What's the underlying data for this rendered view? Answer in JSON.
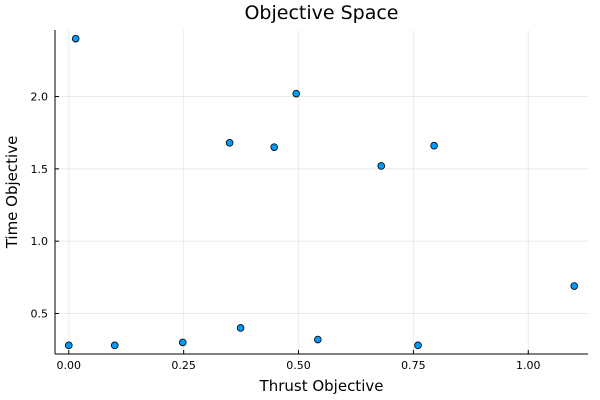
{
  "chart_data": {
    "type": "scatter",
    "title": "Objective Space",
    "xlabel": "Thrust Objective",
    "ylabel": "Time Objective",
    "xlim": [
      -0.03,
      1.13
    ],
    "ylim": [
      0.22,
      2.46
    ],
    "xticks": [
      0.0,
      0.25,
      0.5,
      0.75,
      1.0
    ],
    "xtick_labels": [
      "0.00",
      "0.25",
      "0.50",
      "0.75",
      "1.00"
    ],
    "yticks": [
      0.5,
      1.0,
      1.5,
      2.0
    ],
    "ytick_labels": [
      "0.5",
      "1.0",
      "1.5",
      "2.0"
    ],
    "grid": true,
    "legend": "none",
    "marker_color": "#009AFA",
    "x": [
      0.0,
      0.015,
      0.1,
      0.248,
      0.35,
      0.374,
      0.447,
      0.495,
      0.542,
      0.68,
      0.76,
      0.795,
      1.1
    ],
    "y": [
      0.28,
      2.4,
      0.28,
      0.3,
      1.68,
      0.4,
      1.65,
      2.02,
      0.32,
      1.52,
      0.28,
      1.66,
      0.69
    ]
  }
}
